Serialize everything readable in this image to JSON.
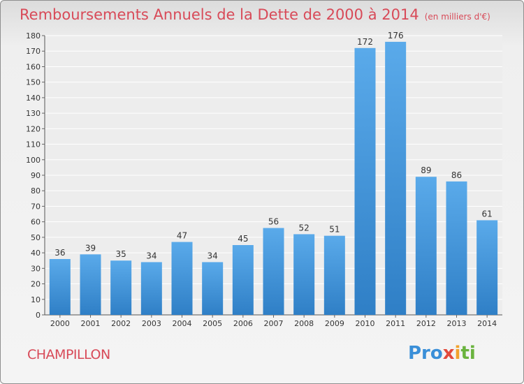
{
  "header": {
    "title": "Remboursements Annuels de la Dette de 2000 à 2014",
    "subtitle": "(en milliers d'€)"
  },
  "footer": {
    "commune": "CHAMPILLON",
    "logo_text": "Proxiti"
  },
  "colors": {
    "bar": "#5aaaea",
    "bar_dark": "#2f7fc6",
    "accent": "#d84a58"
  },
  "chart_data": {
    "type": "bar",
    "title": "Remboursements Annuels de la Dette de 2000 à 2014",
    "subtitle": "(en milliers d'€)",
    "categories": [
      "2000",
      "2001",
      "2002",
      "2003",
      "2004",
      "2005",
      "2006",
      "2007",
      "2008",
      "2009",
      "2010",
      "2011",
      "2012",
      "2013",
      "2014"
    ],
    "values": [
      36,
      39,
      35,
      34,
      47,
      34,
      45,
      56,
      52,
      51,
      172,
      176,
      89,
      86,
      61
    ],
    "xlabel": "",
    "ylabel": "",
    "ylim": [
      0,
      180
    ],
    "yticks": [
      0,
      10,
      20,
      30,
      40,
      50,
      60,
      70,
      80,
      90,
      100,
      110,
      120,
      130,
      140,
      150,
      160,
      170,
      180
    ],
    "grid": true,
    "data_labels": true
  }
}
